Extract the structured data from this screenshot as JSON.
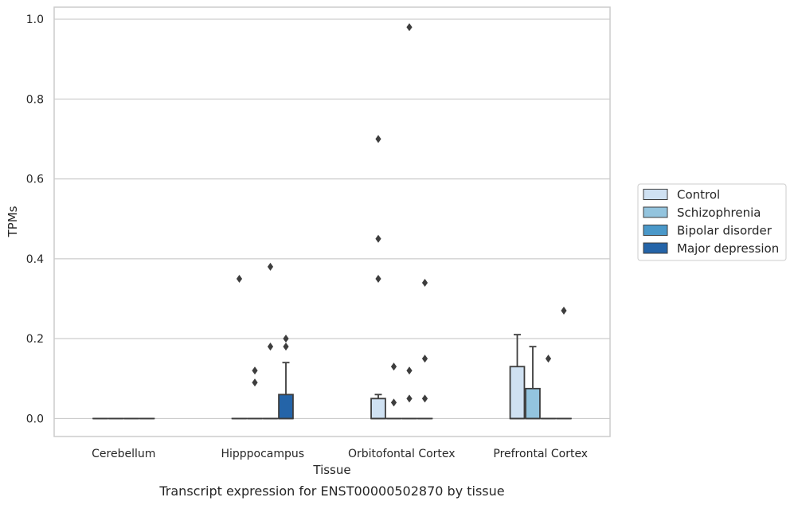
{
  "caption": "Transcript expression for ENST00000502870 by tissue",
  "chart_data": {
    "type": "boxplot",
    "xlabel": "Tissue",
    "ylabel": "TPMs",
    "ylim": [
      -0.045,
      1.03
    ],
    "yticks": [
      "0.0",
      "0.2",
      "0.4",
      "0.6",
      "0.8",
      "1.0"
    ],
    "categories": [
      "Cerebellum",
      "Hipppocampus",
      "Orbitofontal Cortex",
      "Prefrontal Cortex"
    ],
    "grid": true,
    "legend_position": "right",
    "series": [
      {
        "name": "Control",
        "color": "#cfe1f2",
        "boxes": [
          {
            "q1": 0,
            "median": 0,
            "q3": 0,
            "whisker_low": 0,
            "whisker_high": 0,
            "outliers": []
          },
          {
            "q1": 0,
            "median": 0,
            "q3": 0,
            "whisker_low": 0,
            "whisker_high": 0,
            "outliers": [
              0.35
            ]
          },
          {
            "q1": 0,
            "median": 0,
            "q3": 0.05,
            "whisker_low": 0,
            "whisker_high": 0.06,
            "outliers": [
              0.35,
              0.45,
              0.7
            ]
          },
          {
            "q1": 0,
            "median": 0,
            "q3": 0.13,
            "whisker_low": 0,
            "whisker_high": 0.21,
            "outliers": []
          }
        ]
      },
      {
        "name": "Schizophrenia",
        "color": "#93c4de",
        "boxes": [
          {
            "q1": 0,
            "median": 0,
            "q3": 0,
            "whisker_low": 0,
            "whisker_high": 0,
            "outliers": []
          },
          {
            "q1": 0,
            "median": 0,
            "q3": 0,
            "whisker_low": 0,
            "whisker_high": 0,
            "outliers": [
              0.09,
              0.12
            ]
          },
          {
            "q1": 0,
            "median": 0,
            "q3": 0,
            "whisker_low": 0,
            "whisker_high": 0,
            "outliers": [
              0.04,
              0.13
            ]
          },
          {
            "q1": 0,
            "median": 0,
            "q3": 0.075,
            "whisker_low": 0,
            "whisker_high": 0.18,
            "outliers": []
          }
        ]
      },
      {
        "name": "Bipolar disorder",
        "color": "#4a98c9",
        "boxes": [
          {
            "q1": 0,
            "median": 0,
            "q3": 0,
            "whisker_low": 0,
            "whisker_high": 0,
            "outliers": []
          },
          {
            "q1": 0,
            "median": 0,
            "q3": 0,
            "whisker_low": 0,
            "whisker_high": 0,
            "outliers": [
              0.18,
              0.38
            ]
          },
          {
            "q1": 0,
            "median": 0,
            "q3": 0,
            "whisker_low": 0,
            "whisker_high": 0,
            "outliers": [
              0.05,
              0.12,
              0.98
            ]
          },
          {
            "q1": 0,
            "median": 0,
            "q3": 0,
            "whisker_low": 0,
            "whisker_high": 0,
            "outliers": [
              0.15
            ]
          }
        ]
      },
      {
        "name": "Major depression",
        "color": "#2464a8",
        "boxes": [
          {
            "q1": 0,
            "median": 0,
            "q3": 0,
            "whisker_low": 0,
            "whisker_high": 0,
            "outliers": []
          },
          {
            "q1": 0,
            "median": 0,
            "q3": 0.06,
            "whisker_low": 0,
            "whisker_high": 0.14,
            "outliers": [
              0.18,
              0.2
            ]
          },
          {
            "q1": 0,
            "median": 0,
            "q3": 0,
            "whisker_low": 0,
            "whisker_high": 0,
            "outliers": [
              0.05,
              0.15,
              0.34
            ]
          },
          {
            "q1": 0,
            "median": 0,
            "q3": 0,
            "whisker_low": 0,
            "whisker_high": 0,
            "outliers": [
              0.27
            ]
          }
        ]
      }
    ]
  }
}
